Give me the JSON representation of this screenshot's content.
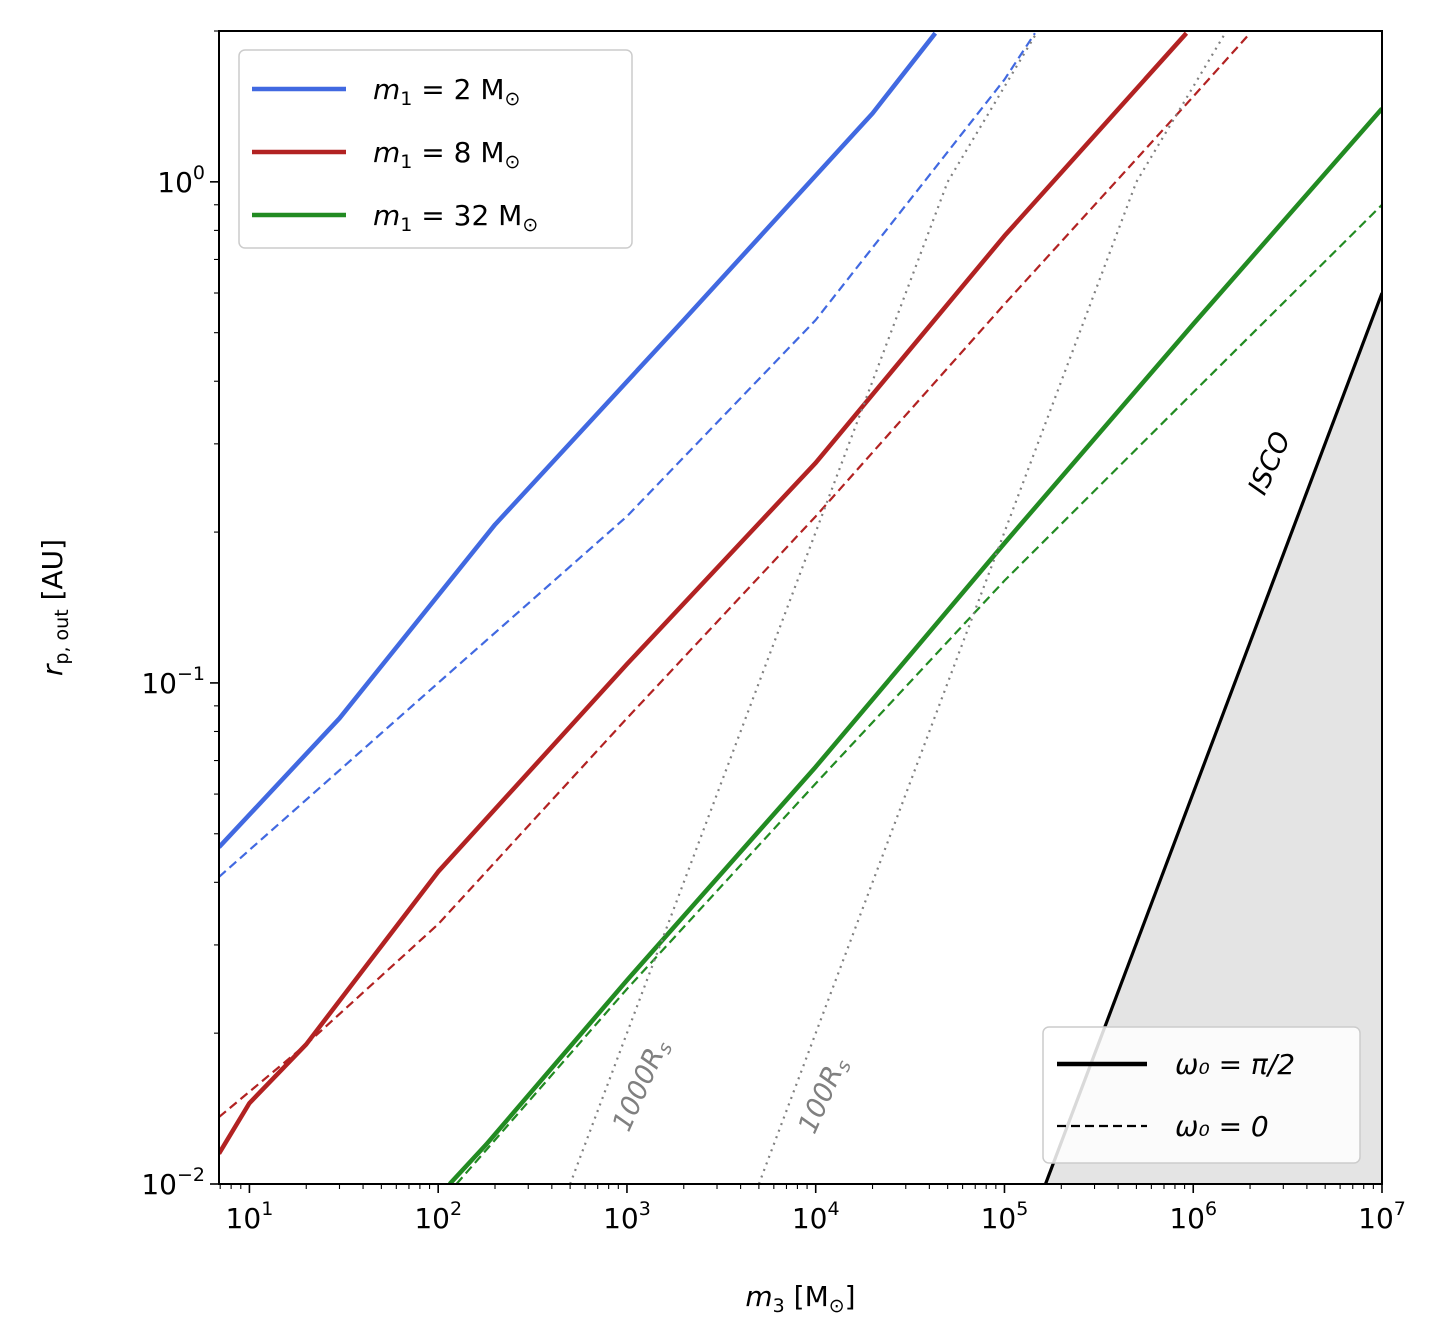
{
  "chart_data": {
    "type": "line",
    "xscale": "log",
    "yscale": "log",
    "xlim": [
      6.9,
      10000000
    ],
    "ylim": [
      0.01,
      2.0
    ],
    "xlabel": "m_3 [M_⊙]",
    "ylabel": "r_p,out [AU]",
    "xticks": [
      {
        "value": 10,
        "base": "10",
        "exp": "1"
      },
      {
        "value": 100,
        "base": "10",
        "exp": "2"
      },
      {
        "value": 1000,
        "base": "10",
        "exp": "3"
      },
      {
        "value": 10000,
        "base": "10",
        "exp": "4"
      },
      {
        "value": 100000,
        "base": "10",
        "exp": "5"
      },
      {
        "value": 1000000,
        "base": "10",
        "exp": "6"
      },
      {
        "value": 10000000,
        "base": "10",
        "exp": "7"
      }
    ],
    "yticks": [
      {
        "value": 0.01,
        "base": "10",
        "exp": "−2"
      },
      {
        "value": 0.1,
        "base": "10",
        "exp": "−1"
      },
      {
        "value": 1,
        "base": "10",
        "exp": "0"
      }
    ],
    "series": [
      {
        "name": "m1 = 2 M⊙, ω0 = π/2",
        "color": "#4169e1",
        "style": "solid",
        "x": [
          6.9,
          30,
          200,
          2000,
          20000,
          43000
        ],
        "y": [
          0.047,
          0.085,
          0.207,
          0.53,
          1.37,
          1.98
        ]
      },
      {
        "name": "m1 = 2 M⊙, ω0 = 0",
        "color": "#4169e1",
        "style": "dashed",
        "x": [
          6.9,
          100,
          1000,
          10000,
          100000,
          145000
        ],
        "y": [
          0.041,
          0.1,
          0.215,
          0.53,
          1.6,
          1.98
        ]
      },
      {
        "name": "m1 = 8 M⊙, ω0 = π/2",
        "color": "#b22222",
        "style": "solid",
        "x": [
          6.9,
          10,
          20,
          100,
          1000,
          10000,
          100000,
          920000
        ],
        "y": [
          0.0115,
          0.0145,
          0.019,
          0.042,
          0.109,
          0.275,
          0.78,
          1.98
        ]
      },
      {
        "name": "m1 = 8 M⊙, ω0 = 0",
        "color": "#b22222",
        "style": "dashed",
        "x": [
          6.9,
          20,
          100,
          1000,
          10000,
          100000,
          1000000,
          2000000
        ],
        "y": [
          0.0136,
          0.019,
          0.033,
          0.085,
          0.215,
          0.57,
          1.48,
          1.98
        ]
      },
      {
        "name": "m1 = 32 M⊙, ω0 = π/2",
        "color": "#228b22",
        "style": "solid",
        "x": [
          115,
          180,
          1000,
          10000,
          100000,
          1000000,
          10000000
        ],
        "y": [
          0.01,
          0.012,
          0.0255,
          0.068,
          0.19,
          0.52,
          1.4
        ]
      },
      {
        "name": "m1 = 32 M⊙, ω0 = 0",
        "color": "#228b22",
        "style": "dashed",
        "x": [
          125,
          1000,
          10000,
          100000,
          1000000,
          10000000
        ],
        "y": [
          0.01,
          0.0245,
          0.063,
          0.16,
          0.38,
          0.9
        ]
      },
      {
        "name": "1000Rs",
        "color": "#808080",
        "style": "dotted",
        "x": [
          500,
          5000,
          50000,
          150000
        ],
        "y": [
          0.01,
          0.1,
          1.0,
          2.0
        ]
      },
      {
        "name": "100Rs",
        "color": "#808080",
        "style": "dotted",
        "x": [
          5000,
          50000,
          500000,
          1500000
        ],
        "y": [
          0.01,
          0.1,
          1.0,
          2.0
        ]
      }
    ],
    "isco": {
      "label": "ISCO",
      "x": [
        165000,
        10000000
      ],
      "y": [
        0.01,
        0.6
      ],
      "fill": "#e4e4e4",
      "color": "#000000"
    },
    "annotations": [
      {
        "text": "1000R",
        "sub": "s",
        "x": 1300,
        "y": 0.0155,
        "color": "#808080"
      },
      {
        "text": "100R",
        "sub": "s",
        "x": 12000,
        "y": 0.0148,
        "color": "#808080"
      },
      {
        "text": "ISCO",
        "x": 2800000,
        "y": 0.27,
        "color": "#000000"
      }
    ],
    "legend_mass": {
      "placement": "upper-left",
      "entries": [
        {
          "label_prefix": "m",
          "label_sub": "1",
          "label_rest": " = 2 M",
          "color": "#4169e1"
        },
        {
          "label_prefix": "m",
          "label_sub": "1",
          "label_rest": " = 8 M",
          "color": "#b22222"
        },
        {
          "label_prefix": "m",
          "label_sub": "1",
          "label_rest": " = 32 M",
          "color": "#228b22"
        }
      ]
    },
    "legend_style": {
      "placement": "lower-right",
      "entries": [
        {
          "label": "ω₀ = π/2",
          "style": "solid"
        },
        {
          "label": "ω₀ = 0",
          "style": "dashed"
        }
      ]
    }
  }
}
